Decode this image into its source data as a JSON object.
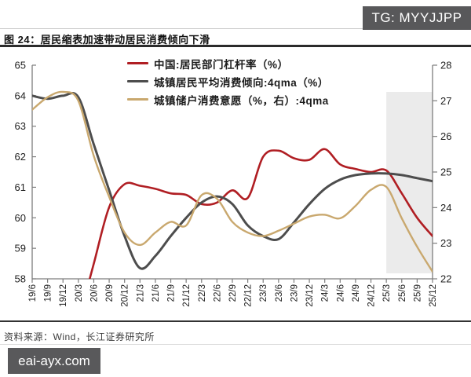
{
  "badge": {
    "text": "TG: MYYJJPP"
  },
  "title": {
    "text": "图 24：居民缩表加速带动居民消费倾向下滑"
  },
  "source": {
    "text": "资料来源：Wind，长江证券研究所"
  },
  "watermark": {
    "text": "eai-ayx.com"
  },
  "chart_data": {
    "type": "line",
    "categories": [
      "19/6",
      "19/9",
      "19/12",
      "20/3",
      "20/6",
      "20/9",
      "20/12",
      "21/3",
      "21/6",
      "21/9",
      "21/12",
      "22/3",
      "22/6",
      "22/9",
      "22/12",
      "23/3",
      "23/6",
      "23/9",
      "23/12",
      "24/3",
      "24/6",
      "24/9",
      "24/12",
      "25/3",
      "25/6",
      "25/9",
      "25/12"
    ],
    "series": [
      {
        "name": "中国:居民部门杠杆率（%）",
        "axis": "left",
        "color": "#b01e23",
        "width": 2.6,
        "values": [
          null,
          null,
          null,
          56.6,
          58.5,
          60.35,
          61.1,
          61.05,
          60.95,
          60.8,
          60.75,
          60.45,
          60.5,
          60.9,
          60.65,
          62.0,
          62.2,
          61.95,
          61.9,
          62.25,
          61.75,
          61.6,
          61.5,
          61.55,
          60.8,
          60.0,
          59.4
        ]
      },
      {
        "name": "城镇居民平均消费倾向:4qma（%）",
        "axis": "left",
        "color": "#4d4d4d",
        "width": 3.0,
        "values": [
          64.0,
          63.9,
          64.0,
          63.95,
          62.4,
          60.9,
          59.4,
          58.35,
          58.75,
          59.4,
          60.0,
          60.5,
          60.7,
          60.45,
          59.75,
          59.4,
          59.3,
          59.85,
          60.45,
          60.95,
          61.25,
          61.4,
          61.45,
          61.45,
          61.4,
          61.3,
          61.2
        ]
      },
      {
        "name": "城镇储户消费意愿（%，右）:4qma",
        "axis": "right",
        "color": "#c9a86e",
        "width": 2.4,
        "values": [
          26.75,
          27.1,
          27.25,
          27.0,
          25.45,
          24.3,
          23.3,
          22.95,
          23.3,
          23.6,
          23.5,
          24.35,
          24.25,
          23.6,
          23.3,
          23.2,
          23.35,
          23.55,
          23.75,
          23.8,
          23.7,
          24.05,
          24.5,
          24.58,
          23.7,
          22.9,
          22.2
        ]
      }
    ],
    "left_axis": {
      "min": 58,
      "max": 65,
      "ticks": [
        65,
        64,
        63,
        62,
        61,
        60,
        59,
        58
      ]
    },
    "right_axis": {
      "min": 22,
      "max": 28,
      "ticks": [
        28,
        27,
        26,
        25,
        24,
        23,
        22
      ]
    },
    "highlight_region": {
      "start_category": "25/3",
      "end_category": "25/12",
      "color": "#ebebeb"
    },
    "legend_position": "top-center",
    "grid": "off"
  }
}
